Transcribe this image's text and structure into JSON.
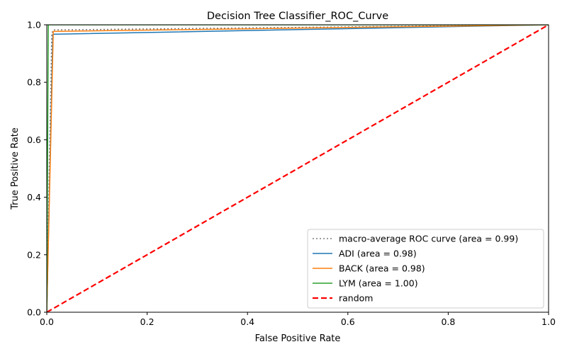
{
  "chart_data": {
    "type": "line",
    "title": "Decision Tree Classifier_ROC_Curve",
    "xlabel": "False Positive Rate",
    "ylabel": "True Positive Rate",
    "xlim": [
      0.0,
      1.0
    ],
    "ylim": [
      0.0,
      1.0
    ],
    "xticks": [
      "0.0",
      "0.2",
      "0.4",
      "0.6",
      "0.8",
      "1.0"
    ],
    "yticks": [
      "0.0",
      "0.2",
      "0.4",
      "0.6",
      "0.8",
      "1.0"
    ],
    "grid": false,
    "legend_position": "lower-right",
    "series": [
      {
        "name": "macro-average ROC curve (area = 0.99)",
        "color": "#7f7f7f",
        "style": "dotted",
        "x": [
          0.0,
          0.01,
          0.013,
          1.0
        ],
        "y": [
          0.0,
          0.97,
          0.982,
          1.0
        ]
      },
      {
        "name": "ADI (area = 0.98)",
        "color": "#1f77b4",
        "style": "solid",
        "x": [
          0.0,
          0.012,
          1.0
        ],
        "y": [
          0.0,
          0.967,
          1.0
        ]
      },
      {
        "name": "BACK (area = 0.98)",
        "color": "#ff7f0e",
        "style": "solid",
        "x": [
          0.0,
          0.013,
          1.0
        ],
        "y": [
          0.0,
          0.977,
          1.0
        ]
      },
      {
        "name": "LYM (area = 1.00)",
        "color": "#2ca02c",
        "style": "solid",
        "x": [
          0.0,
          0.003,
          1.0
        ],
        "y": [
          0.0,
          1.0,
          1.0
        ]
      },
      {
        "name": "random",
        "color": "#ff0000",
        "style": "dashed",
        "x": [
          0.0,
          1.0
        ],
        "y": [
          0.0,
          1.0
        ]
      }
    ]
  }
}
